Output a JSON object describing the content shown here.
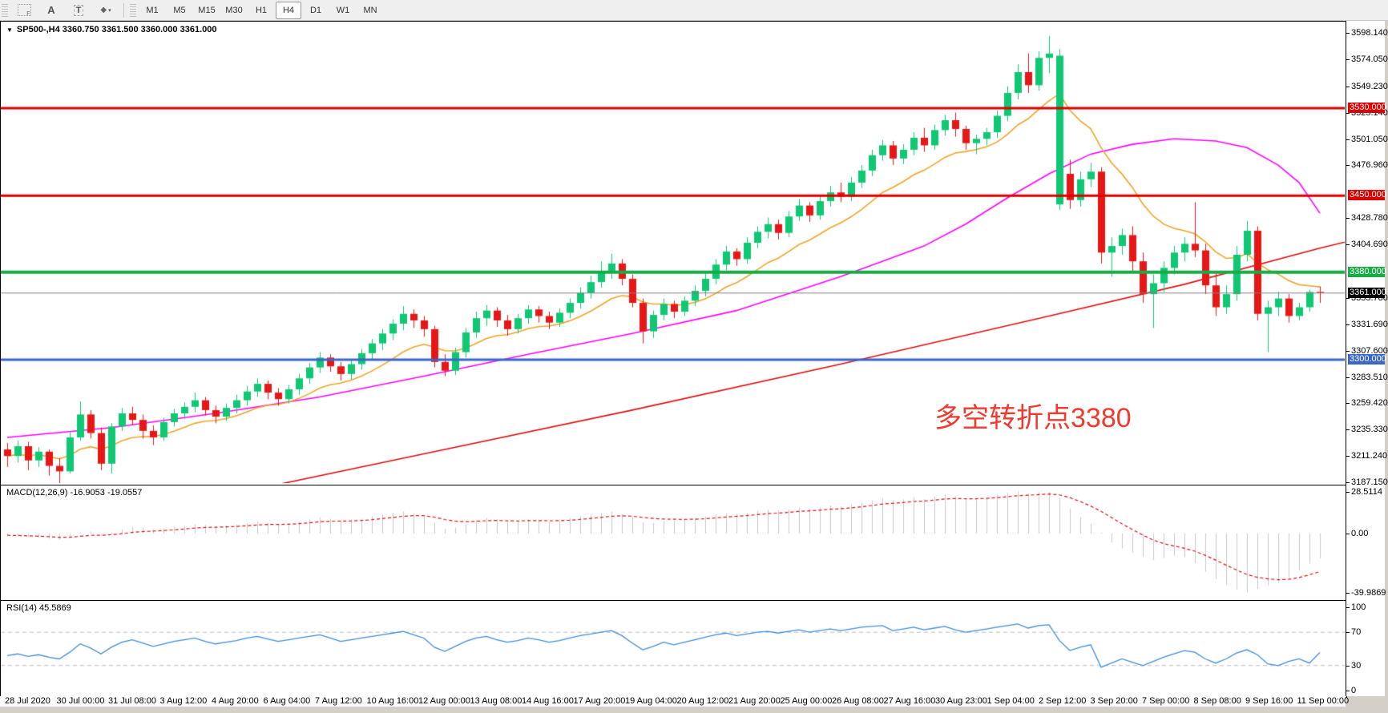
{
  "toolbar": {
    "icons": [
      {
        "name": "frame-select-icon",
        "glyph": "F"
      },
      {
        "name": "text-a-icon",
        "glyph": "A"
      },
      {
        "name": "text-box-icon",
        "glyph": "T"
      },
      {
        "name": "shapes-icon",
        "glyph": "◆"
      }
    ],
    "timeframes": [
      "M1",
      "M5",
      "M15",
      "M30",
      "H1",
      "H4",
      "D1",
      "W1",
      "MN"
    ],
    "active_timeframe": "H4"
  },
  "chart": {
    "title": "SP500-,H4  3360.750 3361.500 3360.000 3361.000",
    "annotation": "多空转折点3380",
    "current_price": "3361.000",
    "price_axis": [
      "3598.140",
      "3574.050",
      "3549.230",
      "3525.140",
      "3501.050",
      "3476.960",
      "3428.780",
      "3404.690",
      "3355.780",
      "3331.690",
      "3307.600",
      "3283.510",
      "3259.420",
      "3235.330",
      "3211.240",
      "3187.150"
    ],
    "levels": [
      {
        "label": "3530.000",
        "value": 3530,
        "color": "#dd0000",
        "width": 3
      },
      {
        "label": "3450.000",
        "value": 3450,
        "color": "#dd0000",
        "width": 3
      },
      {
        "label": "3380.000",
        "value": 3380,
        "color": "#18ab46",
        "width": 4
      },
      {
        "label": "3361.000",
        "value": 3361,
        "color": "#000000",
        "width": 1,
        "line_color": "#808080"
      },
      {
        "label": "3300.000",
        "value": 3300,
        "color": "#3a66cc",
        "width": 3
      }
    ],
    "time_axis": [
      "28 Jul 2020",
      "30 Jul 00:00",
      "31 Jul 08:00",
      "3 Aug 12:00",
      "4 Aug 20:00",
      "6 Aug 04:00",
      "7 Aug 12:00",
      "10 Aug 16:00",
      "12 Aug 00:00",
      "13 Aug 08:00",
      "14 Aug 16:00",
      "17 Aug 20:00",
      "19 Aug 04:00",
      "20 Aug 12:00",
      "21 Aug 20:00",
      "25 Aug 00:00",
      "26 Aug 08:00",
      "27 Aug 16:00",
      "30 Aug 23:00",
      "1 Sep 04:00",
      "2 Sep 12:00",
      "3 Sep 20:00",
      "7 Sep 00:00",
      "8 Sep 08:00",
      "9 Sep 16:00",
      "11 Sep 00:00"
    ],
    "colors": {
      "bull": "#0ec873",
      "bear": "#e81717",
      "ma_fast": "#efa62a",
      "ma_mid": "#ff00ff",
      "ma_slow": "#dd1111",
      "macd_hist": "#c9c9c9",
      "macd_signal": "#e01010",
      "rsi_line": "#3f8edb",
      "rsi_dash": "#bbbbbb"
    }
  },
  "chart_data": {
    "type": "candlestick",
    "symbol": "SP500-",
    "period": "H4",
    "ylim": [
      3187.15,
      3598.14
    ],
    "candles": [
      [
        3218,
        3224,
        3202,
        3212
      ],
      [
        3212,
        3226,
        3206,
        3221
      ],
      [
        3221,
        3225,
        3199,
        3208
      ],
      [
        3208,
        3220,
        3202,
        3216
      ],
      [
        3216,
        3218,
        3194,
        3203
      ],
      [
        3203,
        3210,
        3185,
        3198
      ],
      [
        3198,
        3234,
        3196,
        3229
      ],
      [
        3229,
        3262,
        3226,
        3250
      ],
      [
        3250,
        3254,
        3228,
        3233
      ],
      [
        3233,
        3238,
        3199,
        3205
      ],
      [
        3205,
        3242,
        3196,
        3239
      ],
      [
        3239,
        3256,
        3235,
        3251
      ],
      [
        3251,
        3257,
        3240,
        3245
      ],
      [
        3245,
        3250,
        3228,
        3235
      ],
      [
        3235,
        3240,
        3222,
        3229
      ],
      [
        3229,
        3247,
        3226,
        3243
      ],
      [
        3243,
        3255,
        3239,
        3251
      ],
      [
        3251,
        3261,
        3246,
        3257
      ],
      [
        3257,
        3270,
        3252,
        3263
      ],
      [
        3263,
        3266,
        3249,
        3254
      ],
      [
        3254,
        3258,
        3242,
        3248
      ],
      [
        3248,
        3260,
        3244,
        3256
      ],
      [
        3256,
        3268,
        3251,
        3263
      ],
      [
        3263,
        3276,
        3258,
        3271
      ],
      [
        3271,
        3283,
        3266,
        3278
      ],
      [
        3278,
        3281,
        3264,
        3270
      ],
      [
        3270,
        3274,
        3258,
        3264
      ],
      [
        3264,
        3277,
        3260,
        3273
      ],
      [
        3273,
        3287,
        3268,
        3283
      ],
      [
        3283,
        3297,
        3278,
        3293
      ],
      [
        3293,
        3307,
        3288,
        3302
      ],
      [
        3302,
        3305,
        3289,
        3294
      ],
      [
        3294,
        3298,
        3281,
        3287
      ],
      [
        3287,
        3300,
        3282,
        3296
      ],
      [
        3296,
        3310,
        3291,
        3306
      ],
      [
        3306,
        3319,
        3300,
        3315
      ],
      [
        3315,
        3328,
        3309,
        3324
      ],
      [
        3324,
        3337,
        3318,
        3333
      ],
      [
        3333,
        3349,
        3327,
        3342
      ],
      [
        3342,
        3346,
        3329,
        3336
      ],
      [
        3336,
        3340,
        3321,
        3328
      ],
      [
        3328,
        3331,
        3293,
        3298
      ],
      [
        3298,
        3305,
        3285,
        3290
      ],
      [
        3290,
        3311,
        3286,
        3307
      ],
      [
        3307,
        3329,
        3302,
        3325
      ],
      [
        3325,
        3344,
        3320,
        3338
      ],
      [
        3338,
        3350,
        3331,
        3345
      ],
      [
        3345,
        3348,
        3330,
        3336
      ],
      [
        3336,
        3341,
        3322,
        3328
      ],
      [
        3328,
        3342,
        3324,
        3338
      ],
      [
        3338,
        3350,
        3333,
        3346
      ],
      [
        3346,
        3349,
        3334,
        3340
      ],
      [
        3340,
        3344,
        3328,
        3334
      ],
      [
        3334,
        3347,
        3330,
        3343
      ],
      [
        3343,
        3356,
        3338,
        3352
      ],
      [
        3352,
        3366,
        3347,
        3361
      ],
      [
        3361,
        3377,
        3356,
        3371
      ],
      [
        3371,
        3390,
        3366,
        3381
      ],
      [
        3381,
        3397,
        3374,
        3388
      ],
      [
        3388,
        3392,
        3368,
        3374
      ],
      [
        3374,
        3378,
        3348,
        3352
      ],
      [
        3352,
        3356,
        3315,
        3326
      ],
      [
        3326,
        3345,
        3320,
        3341
      ],
      [
        3341,
        3356,
        3336,
        3351
      ],
      [
        3351,
        3354,
        3338,
        3344
      ],
      [
        3344,
        3358,
        3340,
        3354
      ],
      [
        3354,
        3368,
        3349,
        3363
      ],
      [
        3363,
        3379,
        3358,
        3374
      ],
      [
        3374,
        3392,
        3369,
        3387
      ],
      [
        3387,
        3404,
        3382,
        3399
      ],
      [
        3399,
        3402,
        3386,
        3392
      ],
      [
        3392,
        3412,
        3388,
        3407
      ],
      [
        3407,
        3422,
        3402,
        3417
      ],
      [
        3417,
        3430,
        3411,
        3424
      ],
      [
        3424,
        3428,
        3410,
        3416
      ],
      [
        3416,
        3436,
        3412,
        3431
      ],
      [
        3431,
        3447,
        3427,
        3441
      ],
      [
        3441,
        3444,
        3426,
        3432
      ],
      [
        3432,
        3450,
        3428,
        3445
      ],
      [
        3445,
        3459,
        3440,
        3453
      ],
      [
        3453,
        3462,
        3444,
        3449
      ],
      [
        3449,
        3467,
        3445,
        3462
      ],
      [
        3462,
        3478,
        3457,
        3473
      ],
      [
        3473,
        3492,
        3468,
        3487
      ],
      [
        3487,
        3501,
        3482,
        3496
      ],
      [
        3496,
        3500,
        3478,
        3484
      ],
      [
        3484,
        3497,
        3479,
        3492
      ],
      [
        3492,
        3508,
        3487,
        3503
      ],
      [
        3503,
        3512,
        3490,
        3496
      ],
      [
        3496,
        3515,
        3492,
        3510
      ],
      [
        3510,
        3524,
        3505,
        3519
      ],
      [
        3519,
        3526,
        3504,
        3511
      ],
      [
        3511,
        3514,
        3492,
        3498
      ],
      [
        3498,
        3506,
        3488,
        3502
      ],
      [
        3502,
        3512,
        3496,
        3508
      ],
      [
        3508,
        3528,
        3503,
        3523
      ],
      [
        3523,
        3550,
        3518,
        3544
      ],
      [
        3544,
        3570,
        3538,
        3563
      ],
      [
        3563,
        3580,
        3544,
        3551
      ],
      [
        3551,
        3582,
        3546,
        3576
      ],
      [
        3576,
        3596,
        3562,
        3580
      ],
      [
        3442,
        3584,
        3437,
        3578
      ],
      [
        3470,
        3483,
        3438,
        3446
      ],
      [
        3446,
        3472,
        3440,
        3465
      ],
      [
        3465,
        3480,
        3458,
        3472
      ],
      [
        3472,
        3476,
        3388,
        3398
      ],
      [
        3398,
        3412,
        3376,
        3404
      ],
      [
        3404,
        3420,
        3396,
        3414
      ],
      [
        3414,
        3422,
        3380,
        3390
      ],
      [
        3390,
        3398,
        3352,
        3360
      ],
      [
        3360,
        3378,
        3329,
        3370
      ],
      [
        3370,
        3390,
        3362,
        3384
      ],
      [
        3384,
        3404,
        3378,
        3398
      ],
      [
        3398,
        3412,
        3390,
        3406
      ],
      [
        3406,
        3444,
        3394,
        3400
      ],
      [
        3400,
        3406,
        3360,
        3368
      ],
      [
        3368,
        3380,
        3340,
        3348
      ],
      [
        3348,
        3368,
        3342,
        3360
      ],
      [
        3360,
        3404,
        3354,
        3396
      ],
      [
        3396,
        3427,
        3390,
        3418
      ],
      [
        3418,
        3422,
        3336,
        3342
      ],
      [
        3342,
        3354,
        3307,
        3348
      ],
      [
        3348,
        3362,
        3340,
        3356
      ],
      [
        3356,
        3360,
        3334,
        3340
      ],
      [
        3340,
        3352,
        3336,
        3348
      ],
      [
        3348,
        3364,
        3344,
        3362
      ],
      [
        3362,
        3367,
        3352,
        3361
      ]
    ],
    "ma_fast_period": 12,
    "ma_mid_anchors": [
      [
        0,
        3229
      ],
      [
        10,
        3238
      ],
      [
        20,
        3251
      ],
      [
        30,
        3266
      ],
      [
        40,
        3285
      ],
      [
        50,
        3305
      ],
      [
        60,
        3324
      ],
      [
        70,
        3345
      ],
      [
        80,
        3376
      ],
      [
        84,
        3390
      ],
      [
        88,
        3404
      ],
      [
        92,
        3424
      ],
      [
        96,
        3448
      ],
      [
        100,
        3470
      ],
      [
        104,
        3488
      ],
      [
        108,
        3497
      ],
      [
        112,
        3502
      ],
      [
        116,
        3500
      ],
      [
        119,
        3494
      ],
      [
        122,
        3478
      ],
      [
        124,
        3462
      ],
      [
        126,
        3434
      ]
    ],
    "ma_slow_anchors": [
      [
        26,
        3186
      ],
      [
        40,
        3214
      ],
      [
        60,
        3254
      ],
      [
        80,
        3296
      ],
      [
        100,
        3340
      ],
      [
        113,
        3369
      ],
      [
        126,
        3402
      ],
      [
        129,
        3409
      ]
    ]
  },
  "macd": {
    "label": "MACD(12,26,9) -16.9053 -19.0557",
    "axis": [
      {
        "text": "28.5114",
        "value": 28.5114
      },
      {
        "text": "0.00",
        "value": 0
      },
      {
        "text": "-39.9869",
        "value": -39.9869
      }
    ],
    "values": [
      -1.2,
      -1.8,
      -2.4,
      -2.8,
      -3.5,
      -4.2,
      -2.5,
      0.8,
      1.4,
      -1.0,
      0.6,
      2.8,
      4.2,
      3.8,
      2.9,
      3.4,
      4.4,
      5.4,
      6.3,
      5.8,
      4.9,
      5.4,
      6.1,
      7.0,
      8.0,
      7.4,
      6.4,
      6.9,
      8.1,
      9.6,
      11.0,
      10.0,
      8.6,
      9.0,
      10.1,
      11.6,
      13.0,
      14.1,
      15.0,
      13.9,
      11.9,
      7.2,
      3.1,
      4.0,
      6.6,
      9.1,
      10.6,
      9.6,
      7.6,
      8.1,
      9.6,
      9.1,
      8.1,
      9.0,
      10.4,
      11.6,
      12.8,
      14.0,
      14.8,
      13.2,
      10.8,
      7.8,
      7.2,
      8.4,
      8.9,
      9.4,
      10.2,
      11.4,
      12.8,
      13.8,
      13.4,
      14.2,
      15.2,
      16.2,
      15.6,
      16.4,
      17.6,
      16.8,
      17.8,
      19.0,
      18.4,
      19.6,
      21.0,
      22.6,
      24.0,
      22.4,
      23.2,
      24.6,
      23.4,
      25.0,
      26.4,
      25.2,
      23.0,
      23.6,
      24.8,
      26.2,
      27.6,
      28.5,
      27.2,
      28.0,
      28.4,
      24.0,
      17.0,
      11.0,
      6.5,
      0.5,
      -6.0,
      -10.0,
      -13.0,
      -16.0,
      -18.0,
      -16.5,
      -15.0,
      -16.0,
      -20.0,
      -26.0,
      -31.0,
      -35.0,
      -38.0,
      -39.9,
      -37.5,
      -35.0,
      -33.5,
      -30.0,
      -25.0,
      -20.5,
      -16.9
    ]
  },
  "rsi": {
    "label": "RSI(14) 45.5869",
    "axis": [
      {
        "text": "100",
        "value": 100
      },
      {
        "text": "70",
        "value": 70
      },
      {
        "text": "30",
        "value": 30
      },
      {
        "text": "0",
        "value": 0
      }
    ],
    "dash_levels": [
      70,
      30
    ],
    "values": [
      42,
      44,
      41,
      43,
      40,
      38,
      46,
      56,
      51,
      44,
      52,
      58,
      61,
      57,
      53,
      56,
      59,
      61,
      63,
      59,
      56,
      58,
      60,
      63,
      65,
      62,
      59,
      61,
      63,
      65,
      67,
      63,
      59,
      61,
      63,
      65,
      67,
      69,
      71,
      67,
      63,
      52,
      47,
      53,
      59,
      63,
      65,
      61,
      58,
      60,
      63,
      61,
      58,
      60,
      63,
      66,
      68,
      70,
      72,
      66,
      57,
      49,
      53,
      58,
      55,
      58,
      61,
      64,
      67,
      69,
      66,
      68,
      70,
      71,
      69,
      71,
      73,
      70,
      72,
      74,
      72,
      74,
      76,
      77,
      78,
      72,
      74,
      76,
      73,
      75,
      77,
      73,
      70,
      72,
      74,
      76,
      78,
      80,
      75,
      78,
      79,
      60,
      48,
      52,
      55,
      28,
      33,
      38,
      34,
      30,
      35,
      40,
      44,
      48,
      46,
      38,
      33,
      38,
      45,
      49,
      43,
      32,
      30,
      35,
      38,
      33,
      45.6
    ]
  }
}
